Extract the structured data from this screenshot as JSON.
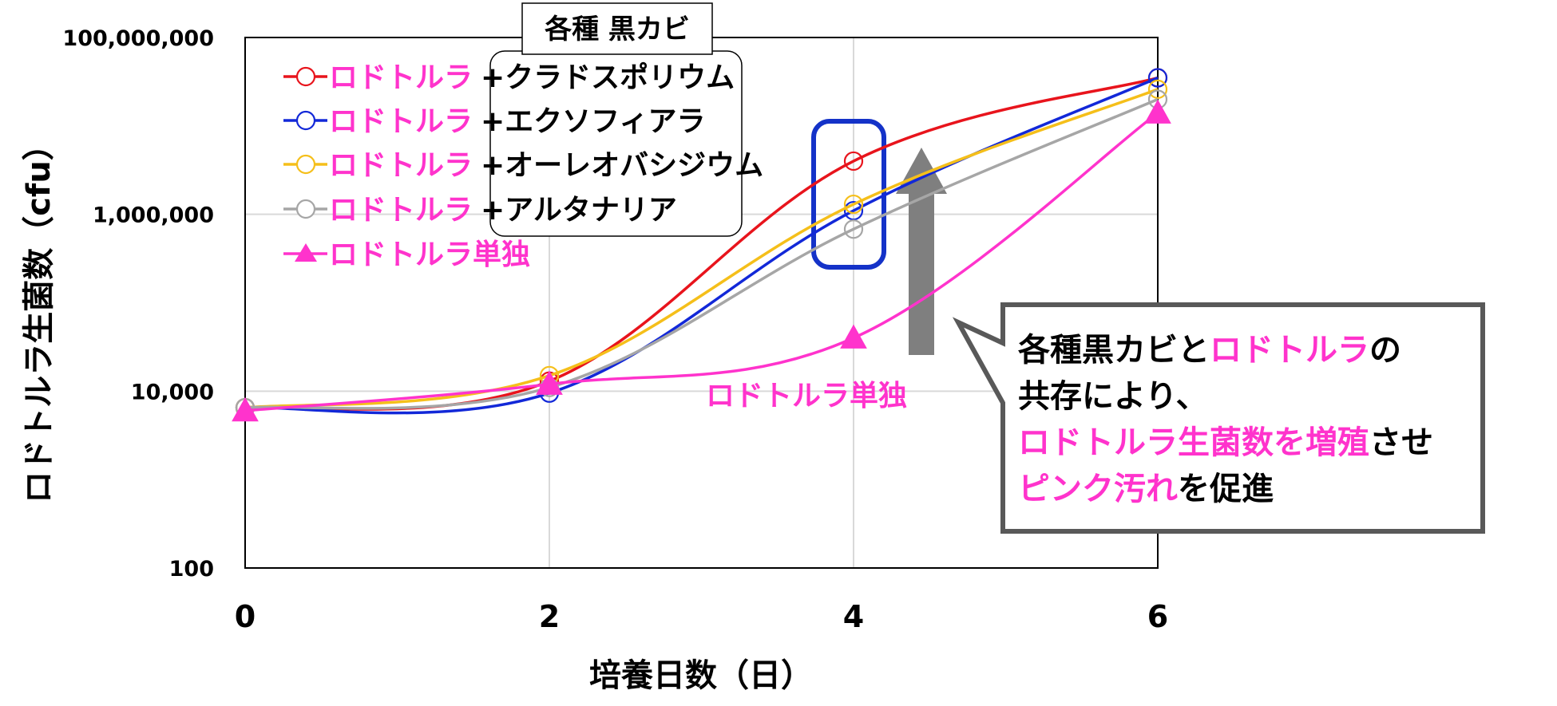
{
  "chart_data": {
    "type": "line",
    "x": [
      0,
      2,
      4,
      6
    ],
    "xlabel": "培養日数（日）",
    "ylabel": "ロドトルラ生菌数（cfu）",
    "yscale": "log",
    "ylim": [
      100,
      100000000
    ],
    "xlim": [
      0,
      6
    ],
    "x_ticks": [
      "0",
      "2",
      "4",
      "6"
    ],
    "y_ticks": [
      "100",
      "10,000",
      "1,000,000",
      "100,000,000"
    ],
    "grid": true,
    "legend_title": "各種 黒カビ",
    "legend_position": "top-left",
    "series": [
      {
        "label_pink": "ロドトルラ",
        "label_rest": "+クラドスポリウム",
        "color": "#e8141c",
        "marker": "circle",
        "values": [
          6500,
          13000,
          4000000,
          35000000
        ]
      },
      {
        "label_pink": "ロドトルラ",
        "label_rest": "+エクソフィアラ",
        "color": "#1228d8",
        "marker": "circle",
        "values": [
          6500,
          9500,
          1100000,
          35000000
        ]
      },
      {
        "label_pink": "ロドトルラ",
        "label_rest": "+オーレオバシジウム",
        "color": "#f5bf1a",
        "marker": "circle",
        "values": [
          6500,
          15000,
          1300000,
          26000000
        ]
      },
      {
        "label_pink": "ロドトルラ",
        "label_rest": "+アルタナリア",
        "color": "#a6a6a6",
        "marker": "circle",
        "values": [
          6500,
          11000,
          680000,
          20000000
        ]
      },
      {
        "label_pink": "ロドトルラ単独",
        "label_rest": "",
        "color": "#ff33cc",
        "marker": "triangle",
        "values": [
          6000,
          12000,
          40000,
          14000000
        ]
      }
    ],
    "annotations": {
      "alone_label": "ロドトルラ単独",
      "callout_lines": [
        [
          {
            "t": "各種黒カビと",
            "c": "#000000"
          },
          {
            "t": "ロドトルラ",
            "c": "#ff33cc"
          },
          {
            "t": "の",
            "c": "#000000"
          }
        ],
        [
          {
            "t": "共存により、",
            "c": "#000000"
          }
        ],
        [
          {
            "t": "ロドトルラ生菌数を増殖",
            "c": "#ff33cc"
          },
          {
            "t": "させ",
            "c": "#000000"
          }
        ],
        [
          {
            "t": "ピンク汚れ",
            "c": "#ff33cc"
          },
          {
            "t": "を促進",
            "c": "#000000"
          }
        ]
      ]
    }
  }
}
